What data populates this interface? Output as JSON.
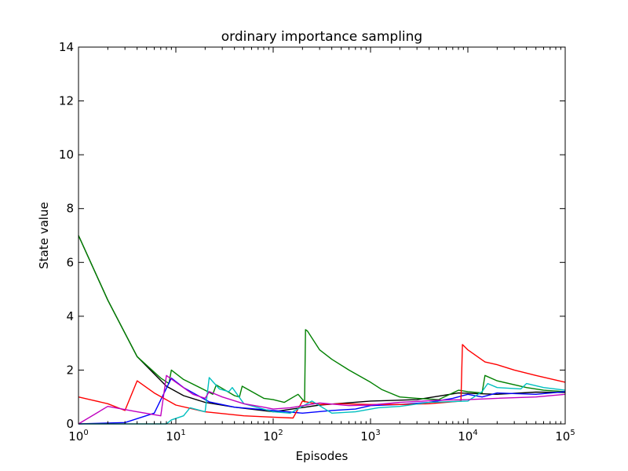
{
  "chart_data": {
    "type": "line",
    "title": "ordinary importance sampling",
    "xlabel": "Episodes",
    "ylabel": "State value",
    "xscale": "log",
    "xlim": [
      1,
      100000
    ],
    "ylim": [
      0,
      14
    ],
    "grid": false,
    "legend": "none",
    "x_ticks": [
      {
        "base": "10",
        "exp": "0",
        "value": 1
      },
      {
        "base": "10",
        "exp": "1",
        "value": 10
      },
      {
        "base": "10",
        "exp": "2",
        "value": 100
      },
      {
        "base": "10",
        "exp": "3",
        "value": 1000
      },
      {
        "base": "10",
        "exp": "4",
        "value": 10000
      },
      {
        "base": "10",
        "exp": "5",
        "value": 100000
      }
    ],
    "y_ticks": [
      "0",
      "2",
      "4",
      "6",
      "8",
      "10",
      "12",
      "14"
    ],
    "series": [
      {
        "color": "#000000",
        "points": [
          [
            1,
            7.0
          ],
          [
            2,
            4.6
          ],
          [
            4,
            2.5
          ],
          [
            8,
            1.4
          ],
          [
            12,
            1.05
          ],
          [
            20,
            0.8
          ],
          [
            40,
            0.62
          ],
          [
            100,
            0.45
          ],
          [
            300,
            0.7
          ],
          [
            1000,
            0.85
          ],
          [
            3000,
            0.9
          ],
          [
            8000,
            1.15
          ],
          [
            20000,
            1.1
          ],
          [
            50000,
            1.18
          ],
          [
            100000,
            1.17
          ]
        ]
      },
      {
        "color": "#008000",
        "points": [
          [
            1,
            7.0
          ],
          [
            2,
            4.6
          ],
          [
            4,
            2.5
          ],
          [
            7,
            1.7
          ],
          [
            8.5,
            1.5
          ],
          [
            9,
            2.0
          ],
          [
            12,
            1.65
          ],
          [
            20,
            1.25
          ],
          [
            24,
            1.1
          ],
          [
            26,
            1.45
          ],
          [
            40,
            1.05
          ],
          [
            45,
            1.0
          ],
          [
            48,
            1.4
          ],
          [
            80,
            0.95
          ],
          [
            100,
            0.9
          ],
          [
            130,
            0.8
          ],
          [
            180,
            1.1
          ],
          [
            210,
            0.82
          ],
          [
            215,
            3.5
          ],
          [
            225,
            3.45
          ],
          [
            300,
            2.75
          ],
          [
            400,
            2.4
          ],
          [
            600,
            2.0
          ],
          [
            1000,
            1.55
          ],
          [
            1300,
            1.28
          ],
          [
            2000,
            1.0
          ],
          [
            3000,
            0.95
          ],
          [
            5000,
            0.9
          ],
          [
            8000,
            1.25
          ],
          [
            10000,
            1.2
          ],
          [
            14000,
            1.15
          ],
          [
            15000,
            1.8
          ],
          [
            20000,
            1.6
          ],
          [
            40000,
            1.35
          ],
          [
            60000,
            1.25
          ],
          [
            100000,
            1.2
          ]
        ]
      },
      {
        "color": "#0000ff",
        "points": [
          [
            1,
            0.0
          ],
          [
            3,
            0.05
          ],
          [
            6,
            0.4
          ],
          [
            9,
            1.7
          ],
          [
            12,
            1.35
          ],
          [
            16,
            1.1
          ],
          [
            22,
            0.82
          ],
          [
            40,
            0.62
          ],
          [
            100,
            0.5
          ],
          [
            200,
            0.4
          ],
          [
            400,
            0.5
          ],
          [
            700,
            0.55
          ],
          [
            1000,
            0.68
          ],
          [
            2000,
            0.72
          ],
          [
            4000,
            0.8
          ],
          [
            7000,
            0.95
          ],
          [
            10000,
            1.1
          ],
          [
            14000,
            1.0
          ],
          [
            20000,
            1.15
          ],
          [
            50000,
            1.1
          ],
          [
            100000,
            1.2
          ]
        ]
      },
      {
        "color": "#ff0000",
        "points": [
          [
            1,
            1.0
          ],
          [
            2,
            0.75
          ],
          [
            3,
            0.5
          ],
          [
            4,
            1.6
          ],
          [
            6,
            1.15
          ],
          [
            10,
            0.7
          ],
          [
            20,
            0.45
          ],
          [
            50,
            0.3
          ],
          [
            100,
            0.25
          ],
          [
            160,
            0.22
          ],
          [
            200,
            0.85
          ],
          [
            300,
            0.72
          ],
          [
            500,
            0.75
          ],
          [
            1000,
            0.72
          ],
          [
            2000,
            0.72
          ],
          [
            4000,
            0.75
          ],
          [
            8500,
            0.85
          ],
          [
            8800,
            2.95
          ],
          [
            10000,
            2.75
          ],
          [
            15000,
            2.3
          ],
          [
            20000,
            2.2
          ],
          [
            30000,
            2.0
          ],
          [
            50000,
            1.8
          ],
          [
            100000,
            1.55
          ]
        ]
      },
      {
        "color": "#00bfbf",
        "points": [
          [
            1,
            0.0
          ],
          [
            8,
            0.0
          ],
          [
            9,
            0.15
          ],
          [
            12,
            0.3
          ],
          [
            14,
            0.6
          ],
          [
            20,
            0.45
          ],
          [
            22,
            1.72
          ],
          [
            28,
            1.3
          ],
          [
            35,
            1.2
          ],
          [
            38,
            1.35
          ],
          [
            50,
            0.75
          ],
          [
            100,
            0.45
          ],
          [
            150,
            0.4
          ],
          [
            250,
            0.85
          ],
          [
            400,
            0.4
          ],
          [
            700,
            0.45
          ],
          [
            1200,
            0.6
          ],
          [
            2000,
            0.65
          ],
          [
            4000,
            0.8
          ],
          [
            10000,
            0.85
          ],
          [
            14000,
            1.2
          ],
          [
            16000,
            1.5
          ],
          [
            20000,
            1.35
          ],
          [
            35000,
            1.3
          ],
          [
            40000,
            1.5
          ],
          [
            60000,
            1.35
          ],
          [
            100000,
            1.25
          ]
        ]
      },
      {
        "color": "#bf00bf",
        "points": [
          [
            1,
            0.0
          ],
          [
            2,
            0.65
          ],
          [
            4,
            0.45
          ],
          [
            7,
            0.3
          ],
          [
            8,
            1.8
          ],
          [
            10,
            1.55
          ],
          [
            15,
            1.1
          ],
          [
            20,
            0.95
          ],
          [
            22,
            1.2
          ],
          [
            30,
            1.0
          ],
          [
            50,
            0.75
          ],
          [
            80,
            0.62
          ],
          [
            100,
            0.55
          ],
          [
            150,
            0.6
          ],
          [
            300,
            0.78
          ],
          [
            600,
            0.68
          ],
          [
            1000,
            0.7
          ],
          [
            2000,
            0.8
          ],
          [
            5000,
            0.88
          ],
          [
            10000,
            0.9
          ],
          [
            20000,
            0.95
          ],
          [
            50000,
            1.0
          ],
          [
            100000,
            1.1
          ]
        ]
      }
    ]
  }
}
